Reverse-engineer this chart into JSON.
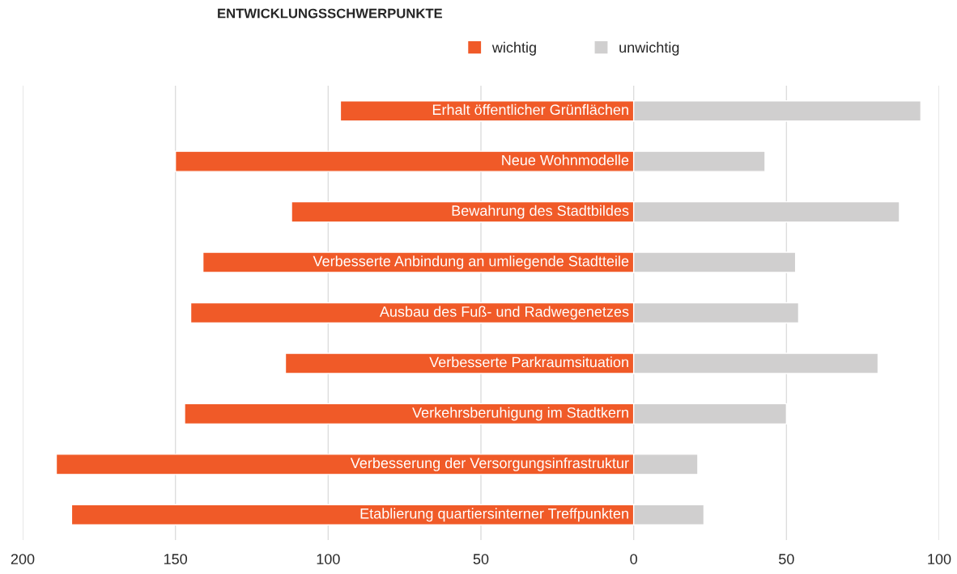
{
  "chart_data": {
    "type": "bar",
    "orientation": "horizontal",
    "stacked": true,
    "title": "ENTWICKLUNGSSCHWERPUNKTE",
    "categories": [
      "Erhalt öffentlicher Grünflächen",
      "Neue Wohnmodelle",
      "Bewahrung des Stadtbildes",
      "Verbesserte Anbindung an umliegende Stadtteile",
      "Ausbau des Fuß- und Radwegenetzes",
      "Verbesserte Parkraumsituation",
      "Verkehrsberuhigung im Stadtkern",
      "Verbesserung der Versorgungsinfrastruktur",
      "Etablierung quartiersinterner Treffpunkten"
    ],
    "series": [
      {
        "name": "wichtig",
        "color": "#f05a28",
        "values": [
          -96,
          -150,
          -112,
          -141,
          -145,
          -114,
          -147,
          -189,
          -184
        ]
      },
      {
        "name": "unwichtig",
        "color": "#d0cfcf",
        "values": [
          94,
          43,
          87,
          53,
          54,
          80,
          50,
          21,
          23
        ]
      }
    ],
    "xlim": [
      -200,
      100
    ],
    "xticks": [
      {
        "value": -200,
        "label": "200"
      },
      {
        "value": -150,
        "label": "150"
      },
      {
        "value": -100,
        "label": "100"
      },
      {
        "value": -50,
        "label": "50"
      },
      0,
      50,
      100
    ],
    "grid": "x",
    "legend": "top"
  }
}
